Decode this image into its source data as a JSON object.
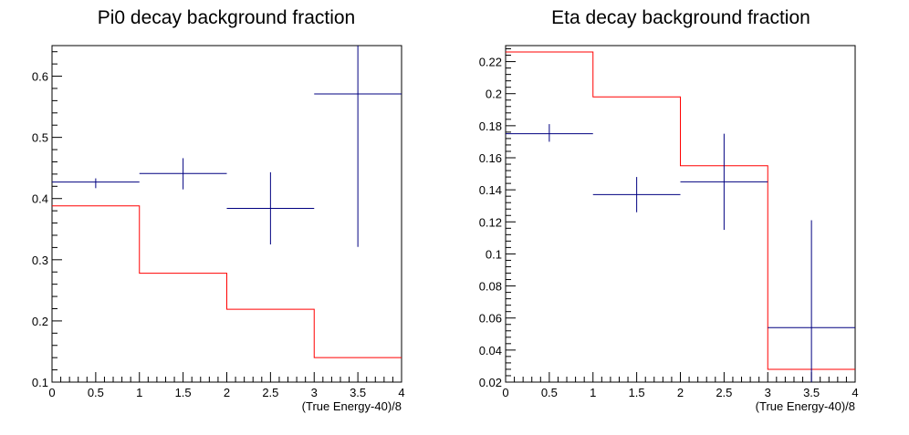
{
  "chart_data": [
    {
      "type": "line",
      "title": "Pi0 decay background fraction",
      "xlabel": "(True Energy-40)/8",
      "ylabel": "",
      "xlim": [
        0,
        4
      ],
      "ylim": [
        0.1,
        0.65
      ],
      "xticks": [
        "0",
        "0.5",
        "1",
        "1.5",
        "2",
        "2.5",
        "3",
        "3.5",
        "4"
      ],
      "yticks": [
        "0.1",
        "0.2",
        "0.3",
        "0.4",
        "0.5",
        "0.6"
      ],
      "series": [
        {
          "style": "step-histogram",
          "color": "#ff0000",
          "bins": [
            [
              0,
              1
            ],
            [
              1,
              2
            ],
            [
              2,
              3
            ],
            [
              3,
              4
            ]
          ],
          "values": [
            0.388,
            0.278,
            0.219,
            0.14
          ]
        },
        {
          "style": "points-with-error-bars",
          "color": "#000080",
          "x": [
            0.5,
            1.5,
            2.5,
            3.5
          ],
          "xerr": [
            0.5,
            0.5,
            0.5,
            0.5
          ],
          "values": [
            0.427,
            0.441,
            0.384,
            0.571
          ],
          "yerr_low": [
            0.01,
            0.026,
            0.059,
            0.25
          ],
          "yerr_high": [
            0.006,
            0.025,
            0.059,
            0.08
          ]
        }
      ]
    },
    {
      "type": "line",
      "title": "Eta decay background fraction",
      "xlabel": "(True Energy-40)/8",
      "ylabel": "",
      "xlim": [
        0,
        4
      ],
      "ylim": [
        0.02,
        0.23
      ],
      "xticks": [
        "0",
        "0.5",
        "1",
        "1.5",
        "2",
        "2.5",
        "3",
        "3.5",
        "4"
      ],
      "yticks": [
        "0.02",
        "0.04",
        "0.06",
        "0.08",
        "0.1",
        "0.12",
        "0.14",
        "0.16",
        "0.18",
        "0.2",
        "0.22"
      ],
      "series": [
        {
          "style": "step-histogram",
          "color": "#ff0000",
          "bins": [
            [
              0,
              1
            ],
            [
              1,
              2
            ],
            [
              2,
              3
            ],
            [
              3,
              4
            ]
          ],
          "values": [
            0.226,
            0.198,
            0.155,
            0.028
          ]
        },
        {
          "style": "points-with-error-bars",
          "color": "#000080",
          "x": [
            0.5,
            1.5,
            2.5,
            3.5
          ],
          "xerr": [
            0.5,
            0.5,
            0.5,
            0.5
          ],
          "values": [
            0.175,
            0.137,
            0.145,
            0.054
          ],
          "yerr_low": [
            0.005,
            0.011,
            0.03,
            0.036
          ],
          "yerr_high": [
            0.006,
            0.011,
            0.03,
            0.067
          ]
        }
      ]
    }
  ]
}
